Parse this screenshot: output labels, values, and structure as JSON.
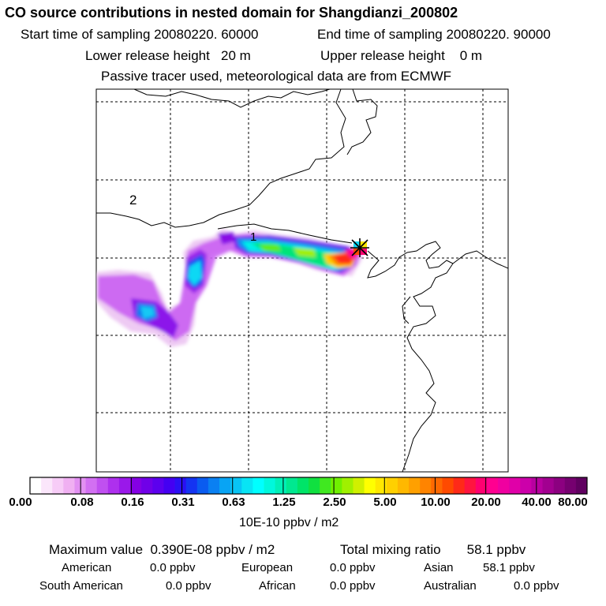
{
  "header": {
    "title": "CO  source contributions in nested domain for Shangdianzi_200802",
    "start_time": "Start time of sampling 20080220. 60000",
    "end_time": "End time of sampling 20080220. 90000",
    "lower_release": "Lower release height   20 m",
    "upper_release": "Upper release height    0 m",
    "tracer_note": "Passive tracer used, meteorological data are from ECMWF"
  },
  "map": {
    "contour_labels": [
      "2",
      "1"
    ],
    "receptor_marker": "station-cross"
  },
  "colorbar": {
    "tick_labels": [
      "0.00",
      "0.08",
      "0.16",
      "0.31",
      "0.63",
      "1.25",
      "2.50",
      "5.00",
      "10.00",
      "20.00",
      "40.00",
      "80.00"
    ],
    "units": "10E-10 ppbv / m2",
    "colors": [
      "#ffffff",
      "#fbe6fb",
      "#f7ccf7",
      "#f0b0f2",
      "#e290f2",
      "#d270f2",
      "#c050f0",
      "#ae30ee",
      "#9a18ea",
      "#8400e4",
      "#7000e8",
      "#5c00ee",
      "#4400f2",
      "#2a10f4",
      "#1434f2",
      "#0a5cf0",
      "#0a80f2",
      "#08a4f4",
      "#08c4f4",
      "#08e4f4",
      "#00ffff",
      "#00f8dc",
      "#00f0b8",
      "#00e890",
      "#00e468",
      "#10e040",
      "#40e820",
      "#70f000",
      "#a0f000",
      "#d0f000",
      "#ffff00",
      "#ffe800",
      "#ffd000",
      "#ffb800",
      "#ffa000",
      "#ff8400",
      "#ff6800",
      "#ff4a00",
      "#ff2a18",
      "#ff1440",
      "#ff0070",
      "#ff0090",
      "#f000a0",
      "#e000a8",
      "#cc00aa",
      "#b800a0",
      "#a20090",
      "#8c0080",
      "#760070",
      "#600060"
    ]
  },
  "stats": {
    "max_value": "Maximum value  0.390E-08 ppbv / m2",
    "total_mixing": "Total mixing ratio       58.1 ppbv",
    "regions": [
      {
        "name": "American",
        "value": "0.0 ppbv"
      },
      {
        "name": "European",
        "value": "0.0 ppbv"
      },
      {
        "name": "Asian",
        "value": "58.1 ppbv"
      },
      {
        "name": "South American",
        "value": "0.0 ppbv"
      },
      {
        "name": "African",
        "value": "0.0 ppbv"
      },
      {
        "name": "Australian",
        "value": "0.0 ppbv"
      }
    ]
  }
}
